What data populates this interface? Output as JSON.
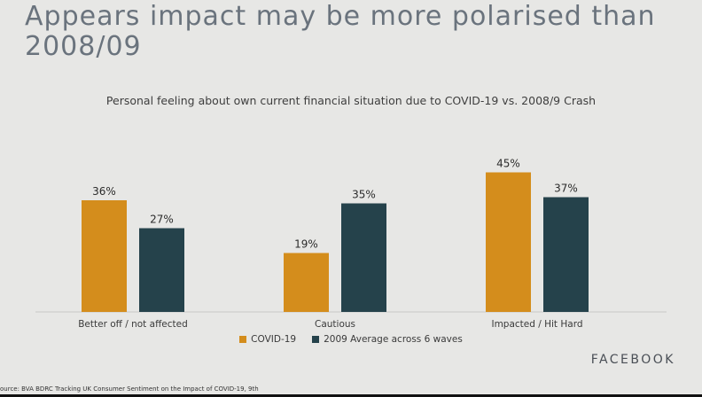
{
  "slide": {
    "title": "Appears impact may be more polarised than 2008/09",
    "brand": "FACEBOOK",
    "source": "ource: BVA BDRC Tracking UK Consumer Sentiment on the Impact of COVID-19, 9th"
  },
  "colors": {
    "covid": "#d48d1c",
    "avg2009": "#25424b",
    "axis": "#c8c8c8",
    "label": "#2b2b2b"
  },
  "chart_data": {
    "type": "bar",
    "title": "Personal feeling about own current financial situation due to COVID-19 vs. 2008/9 Crash",
    "categories": [
      "Better off / not affected",
      "Cautious",
      "Impacted / Hit Hard"
    ],
    "series": [
      {
        "name": "COVID-19",
        "values": [
          36,
          19,
          45
        ],
        "labels": [
          "36%",
          "19%",
          "45%"
        ]
      },
      {
        "name": "2009 Average across 6 waves",
        "values": [
          27,
          35,
          37
        ],
        "labels": [
          "27%",
          "35%",
          "37%"
        ]
      }
    ],
    "xlabel": "",
    "ylabel": "",
    "ylim": [
      0,
      45
    ],
    "grid": false,
    "legend": "bottom"
  }
}
